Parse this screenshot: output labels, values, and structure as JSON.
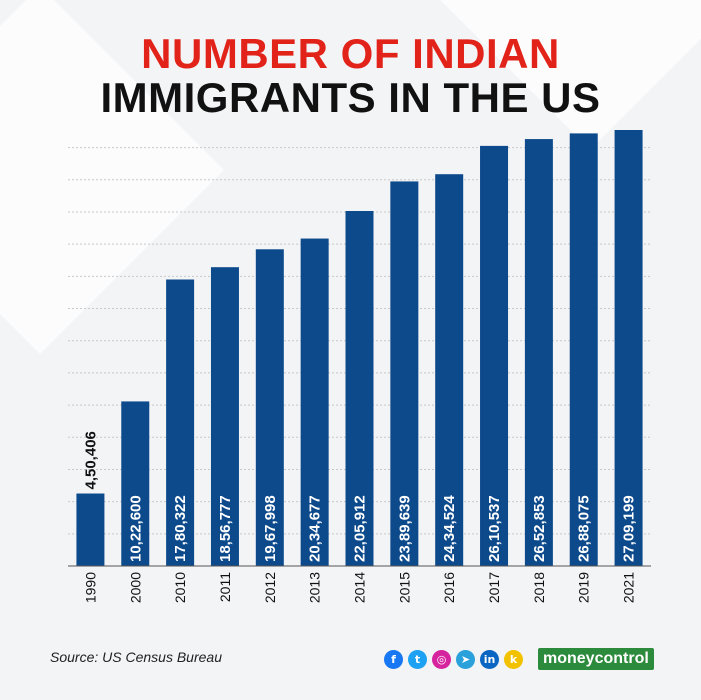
{
  "title": {
    "line1": "NUMBER OF INDIAN",
    "line2": "IMMIGRANTS IN THE US"
  },
  "colors": {
    "title_accent": "#e2231a",
    "bar": "#0d4a8c",
    "brand": "#2c8a3c"
  },
  "chart_data": {
    "type": "bar",
    "title": "NUMBER OF INDIAN IMMIGRANTS IN THE US",
    "categories": [
      "1990",
      "2000",
      "2010",
      "2011",
      "2012",
      "2013",
      "2014",
      "2015",
      "2016",
      "2017",
      "2018",
      "2019",
      "2021"
    ],
    "values": [
      450406,
      1022600,
      1780322,
      1856777,
      1967998,
      2034677,
      2205912,
      2389639,
      2434524,
      2610537,
      2652853,
      2688075,
      2709199
    ],
    "value_labels": [
      "4,50,406",
      "10,22,600",
      "17,80,322",
      "18,56,777",
      "19,67,998",
      "20,34,677",
      "22,05,912",
      "23,89,639",
      "24,34,524",
      "26,10,537",
      "26,52,853",
      "26,88,075",
      "27,09,199"
    ],
    "xlabel": "",
    "ylabel": "",
    "grid": true,
    "axis_labels_visible": false
  },
  "source": "Source: US Census Bureau",
  "footer": {
    "social_icons": [
      "facebook-icon",
      "twitter-icon",
      "instagram-icon",
      "telegram-icon",
      "linkedin-icon",
      "koo-icon"
    ],
    "brand": "moneycontrol"
  }
}
